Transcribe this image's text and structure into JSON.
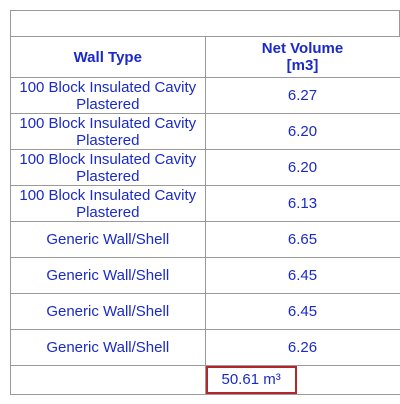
{
  "schedule": {
    "title": "",
    "columns": [
      "Wall Type",
      "Net Volume",
      "[m3]"
    ],
    "rows": [
      {
        "wall_type": "100 Block Insulated Cavity Plastered",
        "net_volume": "6.27"
      },
      {
        "wall_type": "100 Block Insulated Cavity Plastered",
        "net_volume": "6.20"
      },
      {
        "wall_type": "100 Block Insulated Cavity Plastered",
        "net_volume": "6.20"
      },
      {
        "wall_type": "100 Block Insulated Cavity Plastered",
        "net_volume": "6.13"
      },
      {
        "wall_type": "Generic Wall/Shell",
        "net_volume": "6.65"
      },
      {
        "wall_type": "Generic Wall/Shell",
        "net_volume": "6.45"
      },
      {
        "wall_type": "Generic Wall/Shell",
        "net_volume": "6.45"
      },
      {
        "wall_type": "Generic Wall/Shell",
        "net_volume": "6.26"
      }
    ],
    "total": "50.61 m³"
  },
  "colors": {
    "text": "#1a2ac8",
    "highlight": "#b5252a",
    "grid": "#9a9a9a"
  }
}
